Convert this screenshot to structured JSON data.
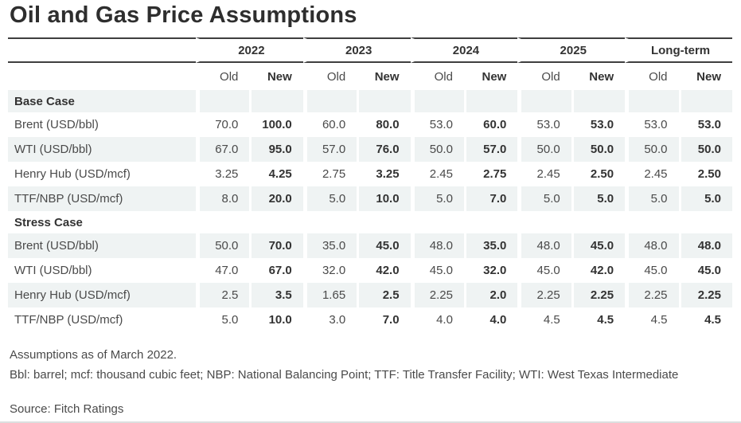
{
  "chart_data": {
    "type": "table",
    "title": "Oil and Gas Price Assumptions",
    "column_groups": [
      "2022",
      "2023",
      "2024",
      "2025",
      "Long-term"
    ],
    "sub_columns": [
      "Old",
      "New"
    ],
    "sections": [
      {
        "name": "Base Case",
        "rows": [
          {
            "label": "Brent (USD/bbl)",
            "values": [
              "70.0",
              "100.0",
              "60.0",
              "80.0",
              "53.0",
              "60.0",
              "53.0",
              "53.0",
              "53.0",
              "53.0"
            ]
          },
          {
            "label": "WTI (USD/bbl)",
            "values": [
              "67.0",
              "95.0",
              "57.0",
              "76.0",
              "50.0",
              "57.0",
              "50.0",
              "50.0",
              "50.0",
              "50.0"
            ]
          },
          {
            "label": "Henry Hub (USD/mcf)",
            "values": [
              "3.25",
              "4.25",
              "2.75",
              "3.25",
              "2.45",
              "2.75",
              "2.45",
              "2.50",
              "2.45",
              "2.50"
            ]
          },
          {
            "label": "TTF/NBP (USD/mcf)",
            "values": [
              "8.0",
              "20.0",
              "5.0",
              "10.0",
              "5.0",
              "7.0",
              "5.0",
              "5.0",
              "5.0",
              "5.0"
            ]
          }
        ]
      },
      {
        "name": "Stress Case",
        "rows": [
          {
            "label": "Brent (USD/bbl)",
            "values": [
              "50.0",
              "70.0",
              "35.0",
              "45.0",
              "48.0",
              "35.0",
              "48.0",
              "45.0",
              "48.0",
              "48.0"
            ]
          },
          {
            "label": "WTI (USD/bbl)",
            "values": [
              "47.0",
              "67.0",
              "32.0",
              "42.0",
              "45.0",
              "32.0",
              "45.0",
              "42.0",
              "45.0",
              "45.0"
            ]
          },
          {
            "label": "Henry Hub (USD/mcf)",
            "values": [
              "2.5",
              "3.5",
              "1.65",
              "2.5",
              "2.25",
              "2.0",
              "2.25",
              "2.25",
              "2.25",
              "2.25"
            ]
          },
          {
            "label": "TTF/NBP (USD/mcf)",
            "values": [
              "5.0",
              "10.0",
              "3.0",
              "7.0",
              "4.0",
              "4.0",
              "4.5",
              "4.5",
              "4.5",
              "4.5"
            ]
          }
        ]
      }
    ],
    "footnotes": {
      "assumptions": "Assumptions as of March 2022.",
      "abbreviations": "Bbl: barrel; mcf: thousand cubic feet; NBP: National Balancing Point; TTF: Title Transfer Facility; WTI: West Texas Intermediate",
      "source": "Source: Fitch Ratings"
    },
    "colors": {
      "stripe": "#eff3f3",
      "rule_dark": "#3f3f3f",
      "rule_light": "#dcdfdf",
      "text": "#4a4a4a",
      "bold_text": "#333333"
    }
  }
}
